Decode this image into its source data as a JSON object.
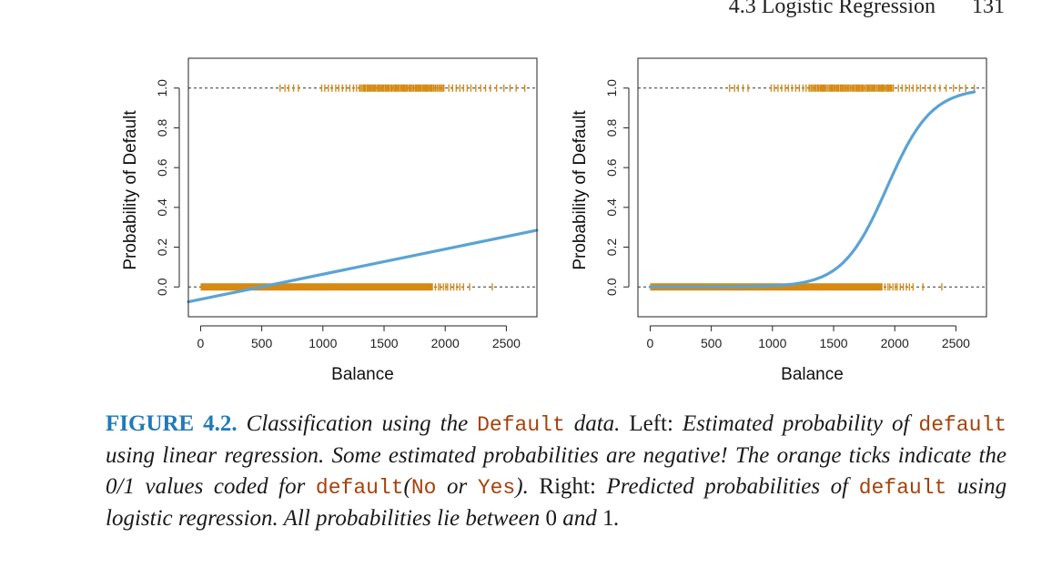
{
  "running_head": {
    "section": "4.3 Logistic Regression",
    "page": "131"
  },
  "colors": {
    "curve": "#5aa3d4",
    "ticks": "#d68a12",
    "caption_label": "#1f7ab8",
    "code": "#a6410c"
  },
  "chart_data": [
    {
      "type": "line",
      "panel": "left",
      "xlabel": "Balance",
      "ylabel": "Probability of Default",
      "xlim": [
        -100,
        2750
      ],
      "ylim": [
        -0.15,
        1.15
      ],
      "xticks": [
        0,
        500,
        1000,
        1500,
        2000,
        2500
      ],
      "yticks": [
        0.0,
        0.2,
        0.4,
        0.6,
        0.8,
        1.0
      ],
      "ytick_labels": [
        "0.0",
        "0.2",
        "0.4",
        "0.6",
        "0.8",
        "1.0"
      ],
      "reference_lines": [
        0,
        1
      ],
      "fit": {
        "method": "linear",
        "points": [
          [
            -100,
            -0.075
          ],
          [
            2750,
            0.285
          ]
        ]
      },
      "observations_no": {
        "y": 0,
        "dense_range": [
          0,
          1900
        ],
        "sparse_x": [
          1920,
          1945,
          1960,
          1985,
          2005,
          2020,
          2045,
          2070,
          2095,
          2120,
          2150,
          2200,
          2385
        ]
      },
      "observations_yes": {
        "y": 1,
        "dense_range": [
          1300,
          2000
        ],
        "sparse_x": [
          650,
          690,
          720,
          760,
          800,
          990,
          1015,
          1045,
          1075,
          1105,
          1130,
          1160,
          1190,
          1220,
          1250,
          1275,
          2030,
          2060,
          2090,
          2120,
          2150,
          2180,
          2210,
          2250,
          2290,
          2330,
          2370,
          2420,
          2480,
          2530,
          2580,
          2650
        ]
      }
    },
    {
      "type": "line",
      "panel": "right",
      "xlabel": "Balance",
      "ylabel": "Probability of Default",
      "xlim": [
        -100,
        2750
      ],
      "ylim": [
        -0.15,
        1.15
      ],
      "xticks": [
        0,
        500,
        1000,
        1500,
        2000,
        2500
      ],
      "yticks": [
        0.0,
        0.2,
        0.4,
        0.6,
        0.8,
        1.0
      ],
      "ytick_labels": [
        "0.0",
        "0.2",
        "0.4",
        "0.6",
        "0.8",
        "1.0"
      ],
      "reference_lines": [
        0,
        1
      ],
      "fit": {
        "method": "logistic",
        "intercept": -10.65,
        "slope": 0.0055,
        "x_range": [
          0,
          2650
        ]
      },
      "observations_no": {
        "y": 0,
        "dense_range": [
          0,
          1900
        ],
        "sparse_x": [
          1920,
          1945,
          1960,
          1985,
          2005,
          2020,
          2045,
          2070,
          2095,
          2120,
          2150,
          2230,
          2385
        ]
      },
      "observations_yes": {
        "y": 1,
        "dense_range": [
          1300,
          2000
        ],
        "sparse_x": [
          650,
          690,
          720,
          760,
          800,
          990,
          1015,
          1045,
          1075,
          1105,
          1130,
          1160,
          1190,
          1220,
          1250,
          1275,
          2030,
          2060,
          2090,
          2120,
          2150,
          2180,
          2210,
          2250,
          2290,
          2330,
          2370,
          2420,
          2480,
          2530,
          2580,
          2650
        ]
      }
    }
  ],
  "caption": {
    "label": "FIGURE 4.2.",
    "s1": "Classification using the",
    "c1": "Default",
    "s2": "data.",
    "s3": "Left:",
    "s4": "Estimated probability of",
    "c2": "default",
    "s5": "using linear regression. Some estimated probabilities are negative! The orange ticks indicate the 0/1 values coded for",
    "c3": "default",
    "s6": "(",
    "c4": "No",
    "s7": "or",
    "c5": "Yes",
    "s8": ").",
    "s9": "Right:",
    "s10": "Predicted probabilities of",
    "c6": "default",
    "s11": "using logistic regression. All probabilities lie between",
    "s12": "0",
    "s13": "and",
    "s14": "1",
    "s15": "."
  }
}
